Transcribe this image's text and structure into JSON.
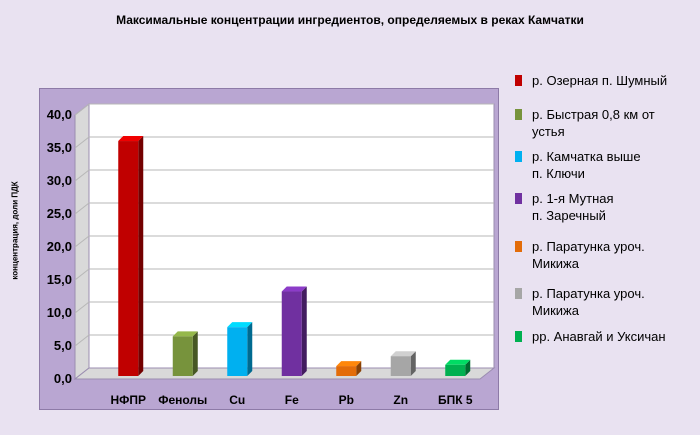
{
  "chart_data": {
    "type": "bar",
    "title": "Максимальные концентрации ингредиентов, определяемых в реках Камчатки",
    "ylabel": "концентрация, доли ПДК",
    "xlabel": "",
    "categories": [
      "НФПР",
      "Фенолы",
      "Cu",
      "Fe",
      "Pb",
      "Zn",
      "БПК 5"
    ],
    "values": [
      35.6,
      6.0,
      7.4,
      12.8,
      1.5,
      3.0,
      1.7
    ],
    "colors": [
      "#c00000",
      "#77933c",
      "#00b0f0",
      "#7030a0",
      "#e36c09",
      "#a6a6a6",
      "#00b050"
    ],
    "ylim": [
      0,
      40
    ],
    "yticks": [
      "0,0",
      "5,0",
      "10,0",
      "15,0",
      "20,0",
      "25,0",
      "30,0",
      "35,0",
      "40,0"
    ],
    "grid": true,
    "legend_position": "right",
    "legend": [
      {
        "label": "р. Озерная п. Шумный",
        "color": "#c00000"
      },
      {
        "label": "р. Быстрая 0,8 км от\nустья",
        "color": "#77933c"
      },
      {
        "label": "р. Камчатка выше\nп. Ключи",
        "color": "#00b0f0"
      },
      {
        "label": "р. 1-я Мутная\n   п. Заречный",
        "color": "#7030a0"
      },
      {
        "label": "р. Паратунка уроч.\nМикижа",
        "color": "#e36c09"
      },
      {
        "label": "р. Паратунка уроч.\nМикижа",
        "color": "#a6a6a6"
      },
      {
        "label": "рр. Анавгай и Уксичан",
        "color": "#00b050"
      }
    ]
  }
}
